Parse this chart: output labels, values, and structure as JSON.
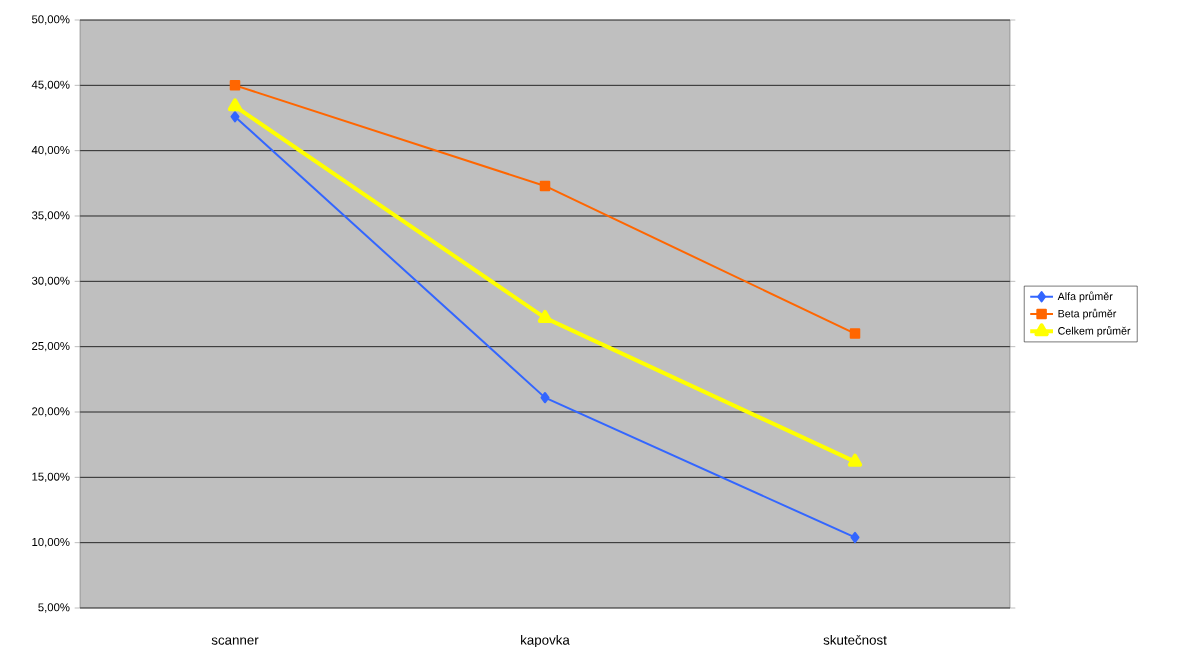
{
  "chart_data": {
    "type": "line",
    "categories": [
      "scanner",
      "kapovka",
      "skutečnost"
    ],
    "series": [
      {
        "name": "Alfa průměr",
        "color": "#3366ff",
        "marker": "diamond",
        "values": [
          42.6,
          21.1,
          10.4
        ]
      },
      {
        "name": "Beta průměr",
        "color": "#ff6600",
        "marker": "square",
        "values": [
          45.0,
          37.3,
          26.0
        ]
      },
      {
        "name": "Celkem průměr",
        "color": "#ffff00",
        "marker": "triangle",
        "values": [
          43.4,
          27.2,
          16.2
        ]
      }
    ],
    "ylim": [
      5,
      50
    ],
    "yticks": [
      {
        "value": 5,
        "label": "5,00%"
      },
      {
        "value": 10,
        "label": "10,00%"
      },
      {
        "value": 15,
        "label": "15,00%"
      },
      {
        "value": 20,
        "label": "20,00%"
      },
      {
        "value": 25,
        "label": "25,00%"
      },
      {
        "value": 30,
        "label": "30,00%"
      },
      {
        "value": 35,
        "label": "35,00%"
      },
      {
        "value": 40,
        "label": "40,00%"
      },
      {
        "value": 45,
        "label": "45,00%"
      },
      {
        "value": 50,
        "label": "50,00%"
      }
    ],
    "grid": "y",
    "legend": "right",
    "line_style": "solid"
  }
}
